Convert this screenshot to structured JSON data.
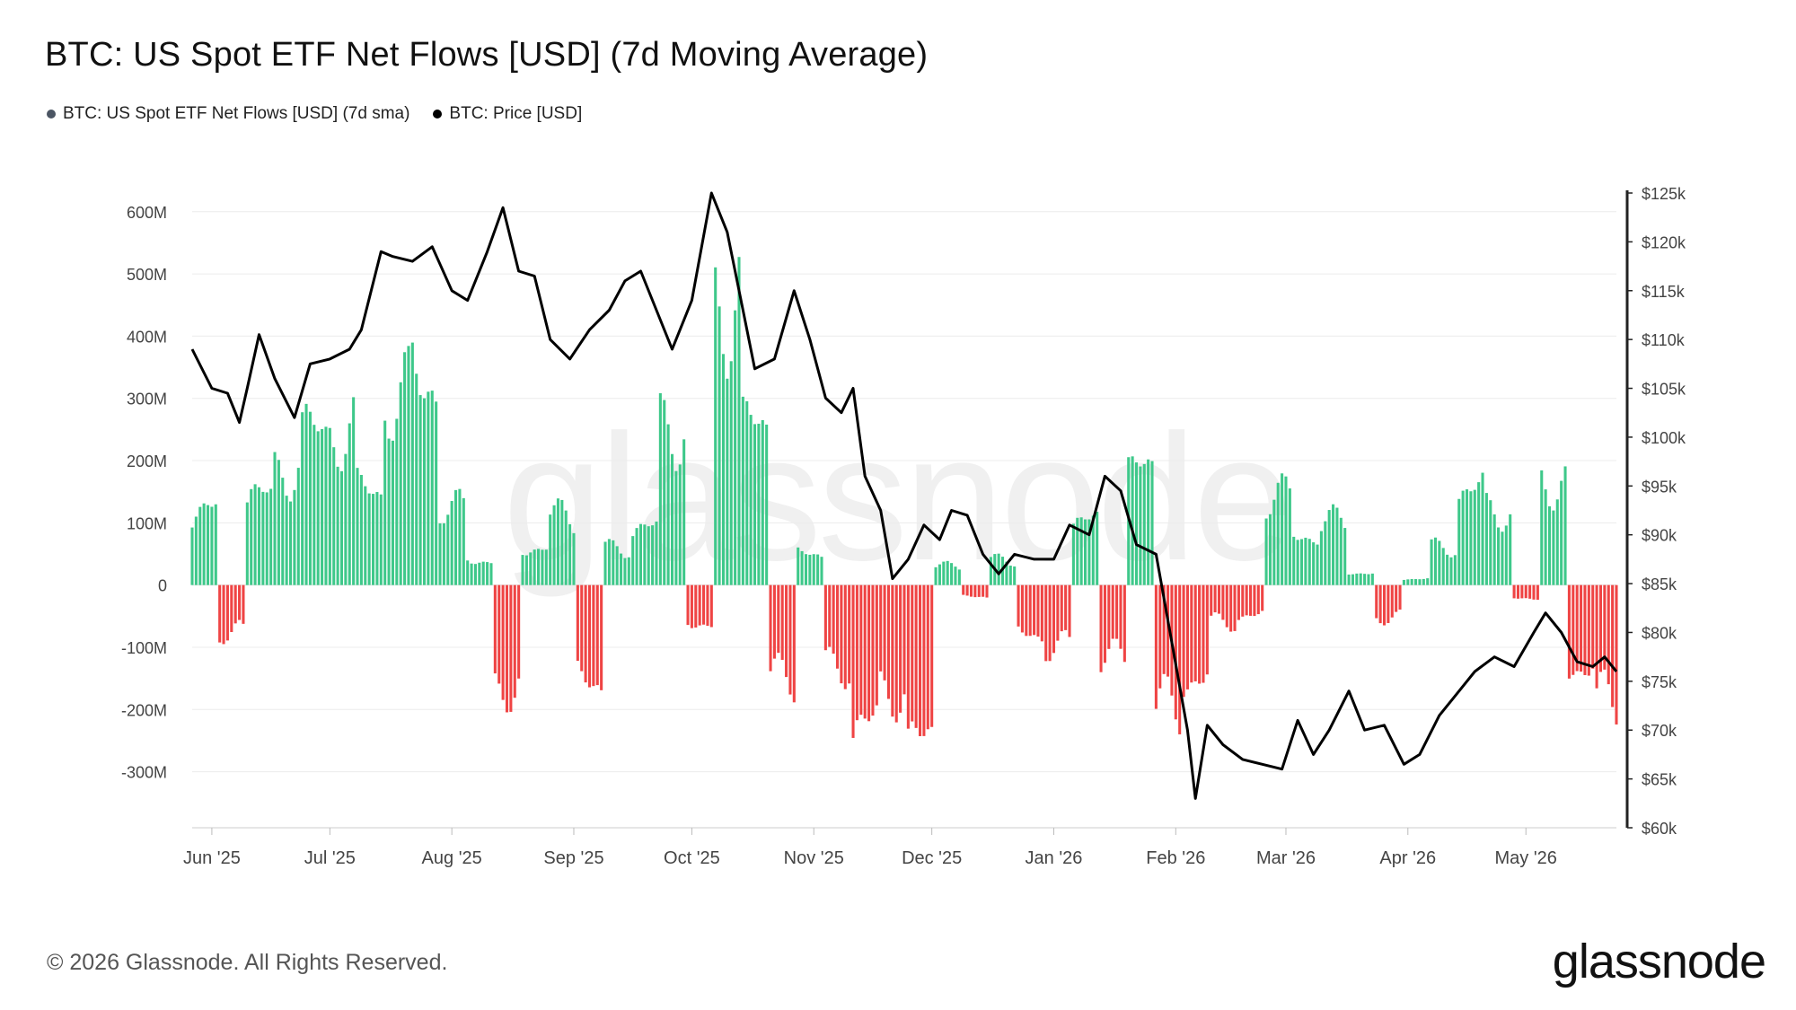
{
  "title": "BTC: US Spot ETF Net Flows [USD] (7d Moving Average)",
  "legend": [
    {
      "label": "BTC: US Spot ETF Net Flows [USD] (7d sma)",
      "color": "#4b5563"
    },
    {
      "label": "BTC: Price [USD]",
      "color": "#000000"
    }
  ],
  "footer": "© 2026 Glassnode. All Rights Reserved.",
  "brand": "glassnode",
  "watermark": "glassnode",
  "colors": {
    "positive": "#3ec88a",
    "negative": "#ef4444",
    "price": "#000000",
    "grid": "#ececec"
  },
  "chart_data": {
    "type": "bar",
    "x_ticks": [
      "Jun '25",
      "Jul '25",
      "Aug '25",
      "Sep '25",
      "Oct '25",
      "Nov '25",
      "Dec '25",
      "Jan '26",
      "Feb '26",
      "Mar '26",
      "Apr '26",
      "May '26"
    ],
    "x_range": [
      "2025-05-27",
      "2026-05-24"
    ],
    "y_left": {
      "ticks": [
        "600M",
        "500M",
        "400M",
        "300M",
        "200M",
        "100M",
        "0",
        "-100M",
        "-200M",
        "-300M"
      ],
      "min": -390,
      "max": 630,
      "unit": "M USD"
    },
    "y_right": {
      "ticks": [
        "$125k",
        "$120k",
        "$115k",
        "$110k",
        "$105k",
        "$100k",
        "$95k",
        "$90k",
        "$85k",
        "$80k",
        "$75k",
        "$70k",
        "$65k",
        "$60k"
      ],
      "min": 60,
      "max": 125,
      "unit": "k USD"
    },
    "flows_weekly": [
      {
        "week_start": "2025-05-27",
        "value": 120
      },
      {
        "week_start": "2025-06-03",
        "value": -80
      },
      {
        "week_start": "2025-06-10",
        "value": 140
      },
      {
        "week_start": "2025-06-17",
        "value": 190
      },
      {
        "week_start": "2025-06-24",
        "value": 240
      },
      {
        "week_start": "2025-07-01",
        "value": 250
      },
      {
        "week_start": "2025-07-08",
        "value": 150
      },
      {
        "week_start": "2025-07-15",
        "value": 300
      },
      {
        "week_start": "2025-07-22",
        "value": 330
      },
      {
        "week_start": "2025-07-29",
        "value": 120
      },
      {
        "week_start": "2025-08-05",
        "value": 40
      },
      {
        "week_start": "2025-08-12",
        "value": -160
      },
      {
        "week_start": "2025-08-19",
        "value": 60
      },
      {
        "week_start": "2025-08-26",
        "value": 110
      },
      {
        "week_start": "2025-09-02",
        "value": -160
      },
      {
        "week_start": "2025-09-09",
        "value": 60
      },
      {
        "week_start": "2025-09-16",
        "value": 90
      },
      {
        "week_start": "2025-09-23",
        "value": 260
      },
      {
        "week_start": "2025-09-30",
        "value": -60
      },
      {
        "week_start": "2025-10-07",
        "value": 470
      },
      {
        "week_start": "2025-10-14",
        "value": 250
      },
      {
        "week_start": "2025-10-21",
        "value": -150
      },
      {
        "week_start": "2025-10-28",
        "value": 50
      },
      {
        "week_start": "2025-11-04",
        "value": -130
      },
      {
        "week_start": "2025-11-11",
        "value": -230
      },
      {
        "week_start": "2025-11-18",
        "value": -170
      },
      {
        "week_start": "2025-11-25",
        "value": -260
      },
      {
        "week_start": "2025-12-02",
        "value": 30
      },
      {
        "week_start": "2025-12-09",
        "value": -20
      },
      {
        "week_start": "2025-12-16",
        "value": 40
      },
      {
        "week_start": "2025-12-23",
        "value": -80
      },
      {
        "week_start": "2025-12-30",
        "value": -100
      },
      {
        "week_start": "2026-01-06",
        "value": 100
      },
      {
        "week_start": "2026-01-13",
        "value": -120
      },
      {
        "week_start": "2026-01-20",
        "value": 180
      },
      {
        "week_start": "2026-01-27",
        "value": -200
      },
      {
        "week_start": "2026-02-03",
        "value": -150
      },
      {
        "week_start": "2026-02-10",
        "value": -60
      },
      {
        "week_start": "2026-02-17",
        "value": -50
      },
      {
        "week_start": "2026-02-24",
        "value": 140
      },
      {
        "week_start": "2026-03-03",
        "value": 80
      },
      {
        "week_start": "2026-03-10",
        "value": 100
      },
      {
        "week_start": "2026-03-17",
        "value": 20
      },
      {
        "week_start": "2026-03-24",
        "value": -50
      },
      {
        "week_start": "2026-03-31",
        "value": 10
      },
      {
        "week_start": "2026-04-07",
        "value": 60
      },
      {
        "week_start": "2026-04-14",
        "value": 150
      },
      {
        "week_start": "2026-04-21",
        "value": 120
      },
      {
        "week_start": "2026-04-28",
        "value": -20
      },
      {
        "week_start": "2026-05-05",
        "value": 170
      },
      {
        "week_start": "2026-05-12",
        "value": -130
      },
      {
        "week_start": "2026-05-19",
        "value": -190
      }
    ],
    "price": [
      {
        "date": "2025-05-27",
        "value": 109
      },
      {
        "date": "2025-06-01",
        "value": 105
      },
      {
        "date": "2025-06-05",
        "value": 104.5
      },
      {
        "date": "2025-06-08",
        "value": 101.5
      },
      {
        "date": "2025-06-10",
        "value": 105
      },
      {
        "date": "2025-06-13",
        "value": 110.5
      },
      {
        "date": "2025-06-17",
        "value": 106
      },
      {
        "date": "2025-06-22",
        "value": 102
      },
      {
        "date": "2025-06-26",
        "value": 107.5
      },
      {
        "date": "2025-07-01",
        "value": 108
      },
      {
        "date": "2025-07-06",
        "value": 109
      },
      {
        "date": "2025-07-09",
        "value": 111
      },
      {
        "date": "2025-07-14",
        "value": 119
      },
      {
        "date": "2025-07-17",
        "value": 118.5
      },
      {
        "date": "2025-07-22",
        "value": 118
      },
      {
        "date": "2025-07-27",
        "value": 119.5
      },
      {
        "date": "2025-08-01",
        "value": 115
      },
      {
        "date": "2025-08-05",
        "value": 114
      },
      {
        "date": "2025-08-10",
        "value": 119
      },
      {
        "date": "2025-08-14",
        "value": 123.5
      },
      {
        "date": "2025-08-18",
        "value": 117
      },
      {
        "date": "2025-08-22",
        "value": 116.5
      },
      {
        "date": "2025-08-26",
        "value": 110
      },
      {
        "date": "2025-08-31",
        "value": 108
      },
      {
        "date": "2025-09-05",
        "value": 111
      },
      {
        "date": "2025-09-10",
        "value": 113
      },
      {
        "date": "2025-09-14",
        "value": 116
      },
      {
        "date": "2025-09-18",
        "value": 117
      },
      {
        "date": "2025-09-22",
        "value": 113
      },
      {
        "date": "2025-09-26",
        "value": 109
      },
      {
        "date": "2025-10-01",
        "value": 114
      },
      {
        "date": "2025-10-06",
        "value": 125
      },
      {
        "date": "2025-10-10",
        "value": 121
      },
      {
        "date": "2025-10-14",
        "value": 113
      },
      {
        "date": "2025-10-17",
        "value": 107
      },
      {
        "date": "2025-10-22",
        "value": 108
      },
      {
        "date": "2025-10-27",
        "value": 115
      },
      {
        "date": "2025-10-31",
        "value": 110
      },
      {
        "date": "2025-11-04",
        "value": 104
      },
      {
        "date": "2025-11-08",
        "value": 102.5
      },
      {
        "date": "2025-11-11",
        "value": 105
      },
      {
        "date": "2025-11-14",
        "value": 96
      },
      {
        "date": "2025-11-18",
        "value": 92.5
      },
      {
        "date": "2025-11-21",
        "value": 85.5
      },
      {
        "date": "2025-11-25",
        "value": 87.5
      },
      {
        "date": "2025-11-29",
        "value": 91
      },
      {
        "date": "2025-12-03",
        "value": 89.5
      },
      {
        "date": "2025-12-06",
        "value": 92.5
      },
      {
        "date": "2025-12-10",
        "value": 92
      },
      {
        "date": "2025-12-14",
        "value": 88
      },
      {
        "date": "2025-12-18",
        "value": 86
      },
      {
        "date": "2025-12-22",
        "value": 88
      },
      {
        "date": "2025-12-27",
        "value": 87.5
      },
      {
        "date": "2026-01-01",
        "value": 87.5
      },
      {
        "date": "2026-01-05",
        "value": 91
      },
      {
        "date": "2026-01-10",
        "value": 90
      },
      {
        "date": "2026-01-14",
        "value": 96
      },
      {
        "date": "2026-01-18",
        "value": 94.5
      },
      {
        "date": "2026-01-22",
        "value": 89
      },
      {
        "date": "2026-01-27",
        "value": 88
      },
      {
        "date": "2026-01-31",
        "value": 79
      },
      {
        "date": "2026-02-04",
        "value": 70
      },
      {
        "date": "2026-02-06",
        "value": 63
      },
      {
        "date": "2026-02-09",
        "value": 70.5
      },
      {
        "date": "2026-02-13",
        "value": 68.5
      },
      {
        "date": "2026-02-18",
        "value": 67
      },
      {
        "date": "2026-02-23",
        "value": 66.5
      },
      {
        "date": "2026-02-28",
        "value": 66
      },
      {
        "date": "2026-03-04",
        "value": 71
      },
      {
        "date": "2026-03-08",
        "value": 67.5
      },
      {
        "date": "2026-03-12",
        "value": 70
      },
      {
        "date": "2026-03-17",
        "value": 74
      },
      {
        "date": "2026-03-21",
        "value": 70
      },
      {
        "date": "2026-03-26",
        "value": 70.5
      },
      {
        "date": "2026-03-31",
        "value": 66.5
      },
      {
        "date": "2026-04-04",
        "value": 67.5
      },
      {
        "date": "2026-04-09",
        "value": 71.5
      },
      {
        "date": "2026-04-13",
        "value": 73.5
      },
      {
        "date": "2026-04-18",
        "value": 76
      },
      {
        "date": "2026-04-23",
        "value": 77.5
      },
      {
        "date": "2026-04-28",
        "value": 76.5
      },
      {
        "date": "2026-05-03",
        "value": 80
      },
      {
        "date": "2026-05-06",
        "value": 82
      },
      {
        "date": "2026-05-10",
        "value": 80
      },
      {
        "date": "2026-05-14",
        "value": 77
      },
      {
        "date": "2026-05-18",
        "value": 76.5
      },
      {
        "date": "2026-05-21",
        "value": 77.5
      },
      {
        "date": "2026-05-24",
        "value": 76
      }
    ]
  }
}
